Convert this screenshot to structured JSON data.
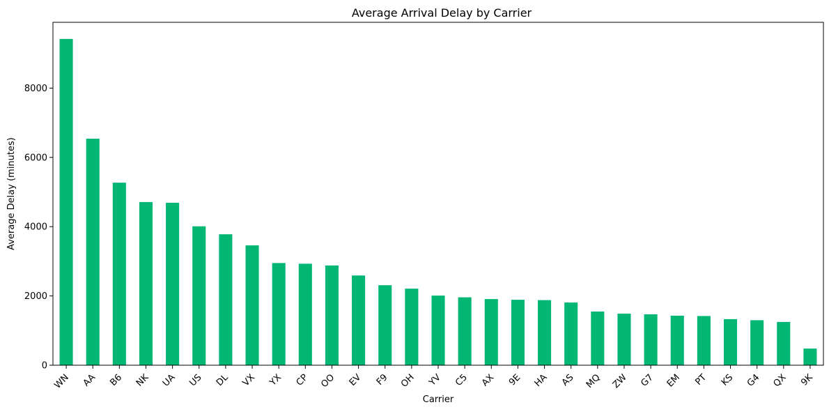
{
  "chart_data": {
    "type": "bar",
    "title": "Average Arrival Delay by Carrier",
    "xlabel": "Carrier",
    "ylabel": "Average Delay (minutes)",
    "ylim": [
      0,
      9900
    ],
    "yticks": [
      0,
      2000,
      4000,
      6000,
      8000
    ],
    "grid": false,
    "legend": "none",
    "bar_color": "#02b673",
    "categories": [
      "WN",
      "AA",
      "B6",
      "NK",
      "UA",
      "US",
      "DL",
      "VX",
      "YX",
      "CP",
      "OO",
      "EV",
      "F9",
      "OH",
      "YV",
      "C5",
      "AX",
      "9E",
      "HA",
      "AS",
      "MQ",
      "ZW",
      "G7",
      "EM",
      "PT",
      "KS",
      "G4",
      "QX",
      "9K"
    ],
    "values": [
      9420,
      6540,
      5270,
      4710,
      4690,
      4010,
      3780,
      3460,
      2950,
      2930,
      2880,
      2590,
      2310,
      2210,
      2010,
      1960,
      1910,
      1890,
      1880,
      1810,
      1550,
      1490,
      1470,
      1430,
      1420,
      1330,
      1300,
      1250,
      480
    ]
  }
}
